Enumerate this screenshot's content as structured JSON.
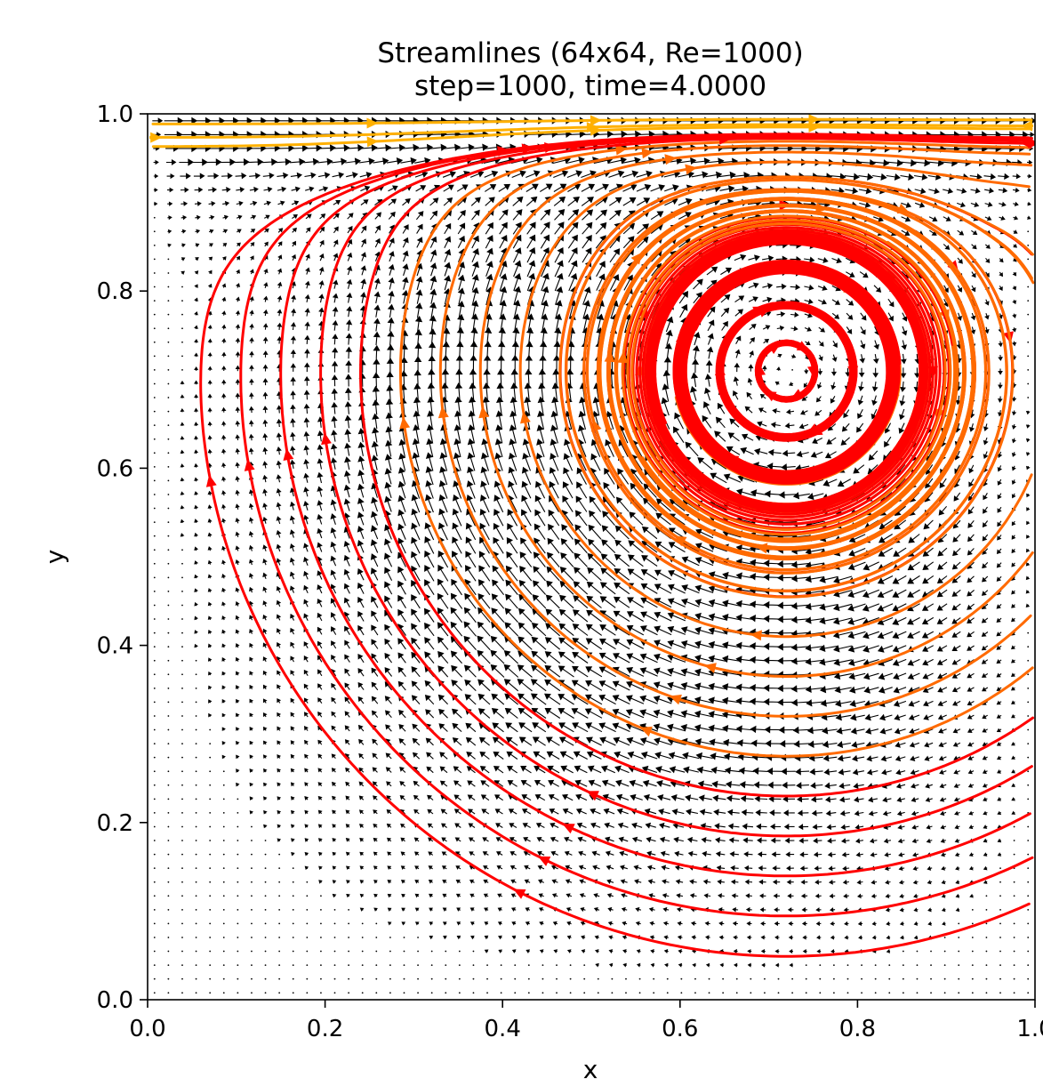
{
  "chart_data": {
    "type": "streamline",
    "title_line1": "Streamlines (64x64, Re=1000)",
    "title_line2": "step=1000, time=4.0000",
    "xlabel": "x",
    "ylabel": "y",
    "xlim": [
      0.0,
      1.0
    ],
    "ylim": [
      0.0,
      1.0
    ],
    "grid_resolution": 64,
    "reynolds_number": 1000,
    "step": 1000,
    "time": 4.0,
    "x_ticks": [
      {
        "value": 0.0,
        "label": "0.0"
      },
      {
        "value": 0.2,
        "label": "0.2"
      },
      {
        "value": 0.4,
        "label": "0.4"
      },
      {
        "value": 0.6,
        "label": "0.6"
      },
      {
        "value": 0.8,
        "label": "0.8"
      },
      {
        "value": 1.0,
        "label": "1.0"
      }
    ],
    "y_ticks": [
      {
        "value": 0.0,
        "label": "0.0"
      },
      {
        "value": 0.2,
        "label": "0.2"
      },
      {
        "value": 0.4,
        "label": "0.4"
      },
      {
        "value": 0.6,
        "label": "0.6"
      },
      {
        "value": 0.8,
        "label": "0.8"
      },
      {
        "value": 1.0,
        "label": "1.0"
      }
    ],
    "primary_vortex_center": [
      0.72,
      0.71
    ],
    "lid_velocity": 1.0,
    "colors": {
      "slow": "#ff0000",
      "mid": "#ff6a00",
      "fast": "#ffb000",
      "quiver": "#000000"
    },
    "grid": false,
    "legend": "none"
  }
}
